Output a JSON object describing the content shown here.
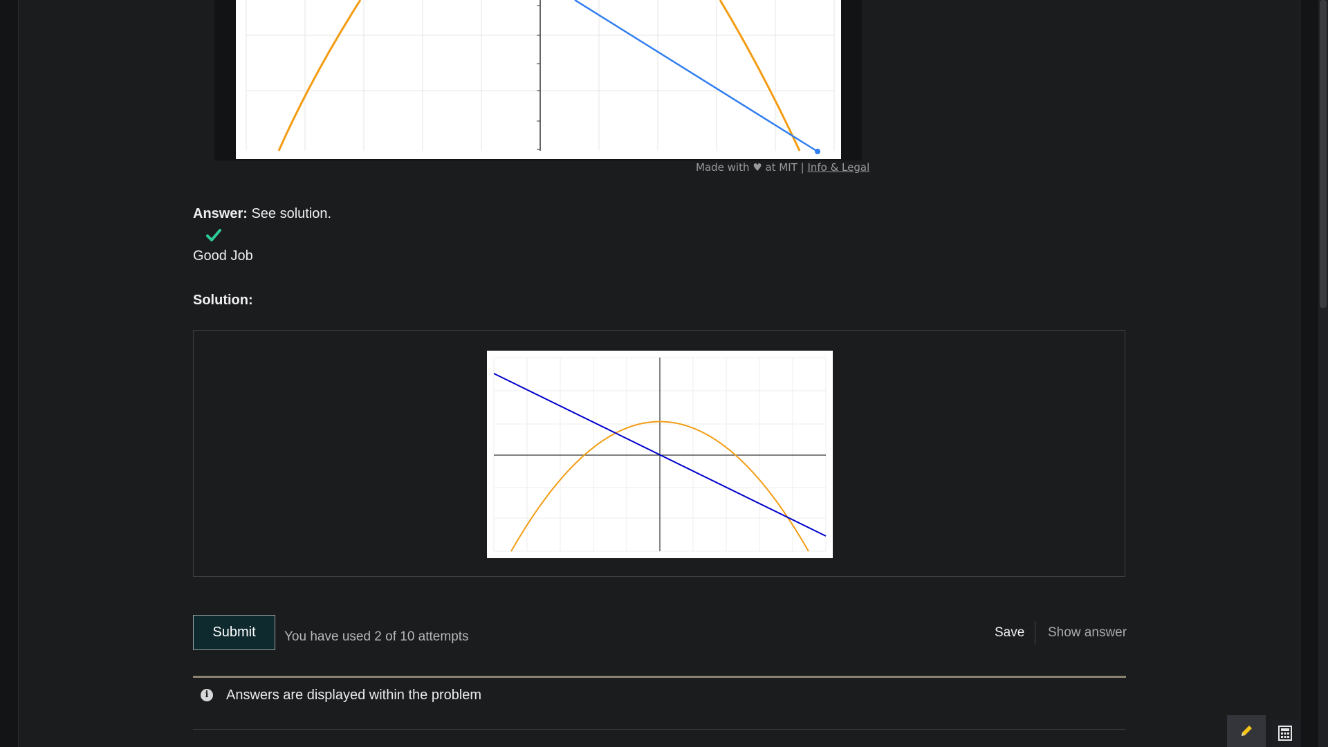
{
  "credits": {
    "prefix": "Made with ♥ at MIT |",
    "link": "Info & Legal"
  },
  "answer": {
    "label": "Answer:",
    "text": "See solution."
  },
  "feedback": {
    "message": "Good Job"
  },
  "solution": {
    "title": "Solution:"
  },
  "actions": {
    "submit_label": "Submit",
    "attempts_text": "You have used 2 of 10 attempts",
    "save_label": "Save",
    "show_answer_label": "Show answer"
  },
  "notification": {
    "text": "Answers are displayed within the problem"
  },
  "colors": {
    "parabola": "#f39c12",
    "line_top": "#2f7df0",
    "line_solution": "#0000cc",
    "check": "#2ecc9a"
  }
}
